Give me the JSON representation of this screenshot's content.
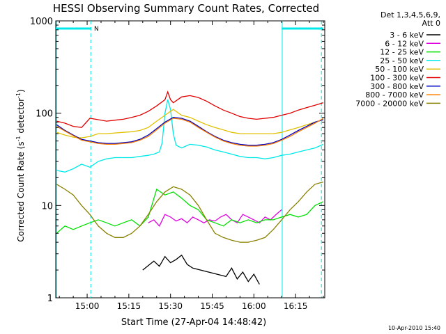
{
  "chart_data": {
    "type": "line",
    "title": "HESSI Observing Summary Count Rates, Corrected",
    "xlabel": "Start Time (27-Apr-04 14:48:42)",
    "ylabel_main": "Corrected Count Rate (s",
    "ylabel_sup1": "-1",
    "ylabel_mid": " detector",
    "ylabel_sup2": "-1",
    "ylabel_end": ")",
    "y_scale": "log",
    "ylim": [
      1,
      1000
    ],
    "xlim_minutes": [
      48.7,
      145.5
    ],
    "x_ticks": [
      {
        "label": "15:00",
        "minute": 60
      },
      {
        "label": "15:15",
        "minute": 75
      },
      {
        "label": "15:30",
        "minute": 90
      },
      {
        "label": "15:45",
        "minute": 105
      },
      {
        "label": "16:00",
        "minute": 120
      },
      {
        "label": "16:15",
        "minute": 135
      }
    ],
    "y_ticks": [
      {
        "label": "1",
        "value": 1
      },
      {
        "label": "10",
        "value": 10
      },
      {
        "label": "100",
        "value": 100
      },
      {
        "label": "1000",
        "value": 1000
      }
    ],
    "legend_header": [
      "Det 1,3,4,5,6,9,",
      "Att 0"
    ],
    "legend_position": "right",
    "footer_date": "10-Apr-2010 15:40",
    "night_label": "N",
    "night_bars": [
      [
        48.7,
        61.5
      ],
      [
        130.0,
        145.0
      ]
    ],
    "vertical_lines": [
      {
        "minute": 49.0,
        "style": "solid"
      },
      {
        "minute": 61.3,
        "style": "dashed"
      },
      {
        "minute": 130.2,
        "style": "solid"
      },
      {
        "minute": 144.3,
        "style": "dashed"
      }
    ],
    "series": [
      {
        "name": "3 - 6 keV",
        "color": "#000000",
        "x": [
          80,
          84,
          86,
          88,
          90,
          92,
          94,
          96,
          98,
          110,
          112,
          114,
          116,
          118,
          120,
          122
        ],
        "y": [
          2,
          2.5,
          2.2,
          2.8,
          2.4,
          2.6,
          2.9,
          2.3,
          2.1,
          1.7,
          2.1,
          1.6,
          1.9,
          1.5,
          1.8,
          1.4
        ]
      },
      {
        "name": "6 - 12 keV",
        "color": "#e000e0",
        "x": [
          82,
          84,
          86,
          88,
          90,
          92,
          94,
          96,
          98,
          100,
          102,
          104,
          106,
          108,
          110,
          112,
          114,
          116,
          118,
          120,
          122,
          124,
          126,
          128,
          130
        ],
        "y": [
          6.5,
          7,
          6,
          8,
          7.5,
          6.8,
          7.2,
          6.5,
          7.5,
          7,
          6.5,
          7,
          6.8,
          7.5,
          8,
          7,
          6.5,
          8,
          7.5,
          7,
          6.5,
          7.5,
          7,
          8,
          9
        ]
      },
      {
        "name": "12 - 25 keV",
        "color": "#00e000",
        "x": [
          49,
          52,
          55,
          58,
          61,
          64,
          67,
          70,
          73,
          76,
          79,
          82,
          85,
          88,
          91,
          94,
          97,
          100,
          103,
          106,
          109,
          112,
          115,
          118,
          121,
          124,
          127,
          130,
          133,
          136,
          139,
          142,
          145
        ],
        "y": [
          5,
          6,
          5.5,
          6,
          6.5,
          7,
          6.5,
          6,
          6.5,
          7,
          6,
          7.5,
          15,
          13,
          14,
          12,
          10,
          9,
          7,
          6.5,
          6,
          7,
          6.5,
          7,
          6.5,
          7,
          7,
          7.5,
          8,
          7.5,
          8,
          10,
          11
        ]
      },
      {
        "name": "25 - 50 keV",
        "color": "#00e8e8",
        "x": [
          49,
          52,
          55,
          58,
          61,
          64,
          67,
          70,
          73,
          76,
          79,
          82,
          84,
          86,
          87,
          88,
          89,
          90,
          91,
          92,
          94,
          97,
          100,
          103,
          106,
          109,
          112,
          115,
          118,
          121,
          124,
          127,
          130,
          133,
          136,
          139,
          142,
          145
        ],
        "y": [
          24,
          23,
          25,
          28,
          26,
          30,
          32,
          33,
          33,
          33,
          34,
          35,
          36,
          38,
          48,
          100,
          140,
          110,
          60,
          45,
          42,
          46,
          45,
          43,
          40,
          38,
          36,
          34,
          33,
          33,
          32,
          33,
          35,
          36,
          38,
          40,
          42,
          46
        ]
      },
      {
        "name": "50 - 100 keV",
        "color": "#e0c000",
        "x": [
          49,
          52,
          55,
          58,
          61,
          64,
          67,
          70,
          73,
          76,
          79,
          82,
          85,
          88,
          91,
          94,
          97,
          100,
          103,
          106,
          109,
          112,
          115,
          118,
          121,
          124,
          127,
          130,
          133,
          136,
          139,
          142,
          145
        ],
        "y": [
          62,
          58,
          55,
          54,
          56,
          60,
          60,
          61,
          62,
          63,
          65,
          70,
          82,
          95,
          110,
          95,
          90,
          82,
          75,
          70,
          66,
          62,
          60,
          60,
          60,
          60,
          60,
          62,
          66,
          70,
          75,
          80,
          85
        ]
      },
      {
        "name": "100 - 300 keV",
        "color": "#e00000",
        "x": [
          49,
          52,
          55,
          58,
          61,
          64,
          67,
          70,
          73,
          76,
          79,
          82,
          85,
          88,
          89,
          90,
          91,
          94,
          97,
          100,
          103,
          106,
          109,
          112,
          115,
          118,
          121,
          124,
          127,
          130,
          133,
          136,
          139,
          142,
          145
        ],
        "y": [
          82,
          78,
          72,
          70,
          88,
          85,
          82,
          84,
          86,
          90,
          95,
          105,
          120,
          140,
          170,
          140,
          130,
          150,
          155,
          148,
          135,
          120,
          108,
          100,
          92,
          88,
          86,
          88,
          90,
          95,
          100,
          108,
          115,
          122,
          130
        ]
      },
      {
        "name": "300 - 800 keV",
        "color": "#0000c0",
        "x": [
          49,
          52,
          55,
          58,
          61,
          64,
          67,
          70,
          73,
          76,
          79,
          82,
          85,
          88,
          91,
          94,
          97,
          100,
          103,
          106,
          109,
          112,
          115,
          118,
          121,
          124,
          127,
          130,
          133,
          136,
          139,
          142,
          145
        ],
        "y": [
          75,
          65,
          58,
          52,
          50,
          48,
          47,
          47,
          48,
          49,
          52,
          58,
          68,
          80,
          90,
          88,
          82,
          72,
          63,
          56,
          51,
          48,
          46,
          45,
          45,
          46,
          48,
          52,
          58,
          65,
          72,
          80,
          85
        ]
      },
      {
        "name": "800 - 7000 keV",
        "color": "#ff8000",
        "x": [
          49,
          52,
          55,
          58,
          61,
          64,
          67,
          70,
          73,
          76,
          79,
          82,
          85,
          88,
          91,
          94,
          97,
          100,
          103,
          106,
          109,
          112,
          115,
          118,
          121,
          124,
          127,
          130,
          133,
          136,
          139,
          142,
          145
        ],
        "y": [
          72,
          64,
          57,
          51,
          49,
          47,
          46,
          46,
          47,
          48,
          51,
          56,
          66,
          78,
          88,
          86,
          80,
          70,
          62,
          55,
          50,
          47,
          45,
          44,
          44,
          45,
          47,
          51,
          56,
          63,
          70,
          78,
          88
        ]
      },
      {
        "name": "7000 - 20000 keV",
        "color": "#888000",
        "x": [
          49,
          52,
          55,
          58,
          61,
          64,
          67,
          70,
          73,
          76,
          79,
          82,
          85,
          88,
          91,
          94,
          97,
          100,
          103,
          106,
          109,
          112,
          115,
          118,
          121,
          124,
          127,
          130,
          133,
          136,
          139,
          142,
          145
        ],
        "y": [
          17,
          15,
          13,
          10,
          8,
          6,
          5,
          4.5,
          4.5,
          5,
          6,
          8,
          11,
          14,
          16,
          15,
          13,
          10,
          7,
          5,
          4.5,
          4.2,
          4,
          4,
          4.2,
          4.5,
          5.5,
          7,
          9,
          11,
          14,
          17,
          18
        ]
      }
    ]
  }
}
